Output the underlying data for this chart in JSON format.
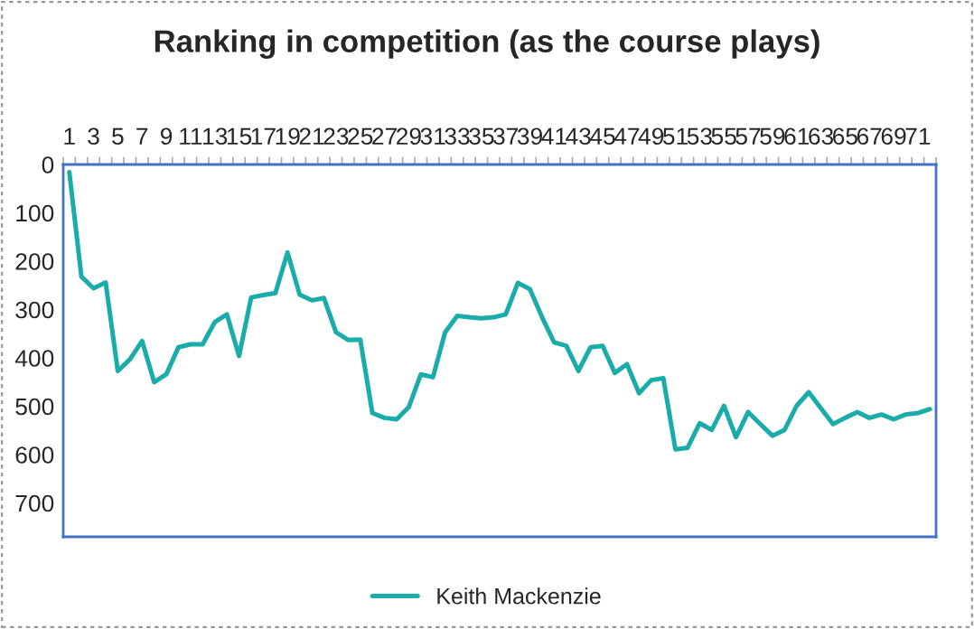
{
  "chart_data": {
    "type": "line",
    "title": "Ranking in competition (as the course plays)",
    "categories": [
      "1",
      null,
      "3",
      null,
      "5",
      null,
      "7",
      null,
      "9",
      null,
      "11",
      null,
      "13",
      null,
      "15",
      null,
      "17",
      null,
      "19",
      null,
      "21",
      null,
      "23",
      null,
      "25",
      null,
      "27",
      null,
      "29",
      null,
      "31",
      null,
      "33",
      null,
      "35",
      null,
      "37",
      null,
      "39",
      null,
      "41",
      null,
      "43",
      null,
      "45",
      null,
      "47",
      null,
      "49",
      null,
      "51",
      null,
      "53",
      null,
      "55",
      null,
      "57",
      null,
      "59",
      null,
      "61",
      null,
      "63",
      null,
      "65",
      null,
      "67",
      null,
      "69",
      null,
      "71",
      null
    ],
    "series": [
      {
        "name": "Keith Mackenzie",
        "color": "#1aaca8",
        "values": [
          16,
          232,
          256,
          244,
          427,
          403,
          365,
          450,
          434,
          378,
          372,
          372,
          326,
          310,
          396,
          275,
          270,
          266,
          182,
          269,
          281,
          276,
          347,
          363,
          362,
          514,
          524,
          527,
          502,
          434,
          440,
          347,
          313,
          316,
          318,
          316,
          310,
          245,
          258,
          316,
          368,
          375,
          427,
          378,
          375,
          431,
          413,
          473,
          446,
          442,
          589,
          586,
          535,
          549,
          499,
          564,
          512,
          537,
          561,
          549,
          499,
          471,
          504,
          537,
          524,
          512,
          524,
          517,
          527,
          517,
          514,
          506
        ]
      }
    ],
    "ylim": [
      770,
      0
    ],
    "yticks": [
      0,
      100,
      200,
      300,
      400,
      500,
      600,
      700
    ],
    "grid": false,
    "legend": "bottom",
    "marker": "none",
    "line_style": "solid"
  }
}
